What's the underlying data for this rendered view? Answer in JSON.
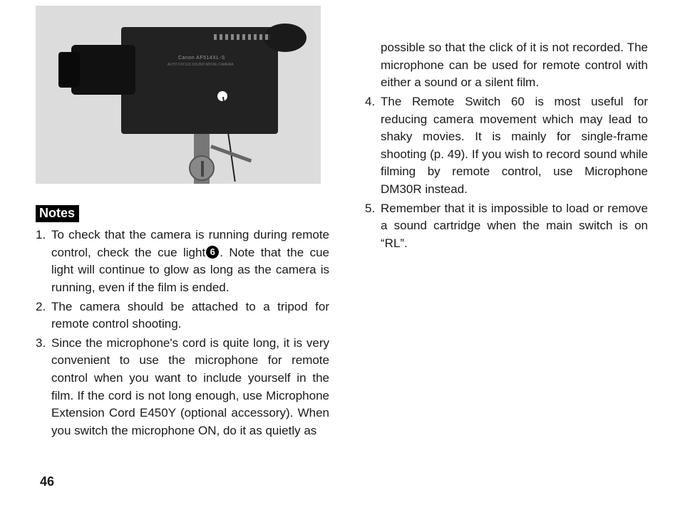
{
  "photo": {
    "brand_line": "Canon AF514XL-S",
    "sub_line": "AUTO FOCUS SOUND MOVIE CAMERA"
  },
  "notes_label": "Notes",
  "notes_left": [
    {
      "pre": "To check that the camera is running during remote control, check the cue light",
      "circled": "6",
      "post": ". Note that the cue light will continue to glow as long as the camera is running, even if the film is ended."
    },
    {
      "text": "The camera should be attached to a tripod for remote control shooting."
    },
    {
      "text": "Since the microphone's cord is quite long, it is very convenient to use the microphone for remote control when you want to include yourself in the film. If the cord is not long enough, use Microphone Extension Cord E450Y (optional accessory). When you switch the microphone ON, do it as quietly as"
    }
  ],
  "continuation_right": "possible so that the click of it is not recorded. The microphone can be used for remote control with either a sound or a silent film.",
  "notes_right": [
    {
      "text": "The Remote Switch 60 is most useful for reducing camera movement which may lead to shaky movies. It is mainly for single-frame shooting (p. 49). If you wish to record sound while filming by remote control, use Microphone DM30R instead."
    },
    {
      "text": "Remember that it is impossible to load or remove a sound cartridge when the main switch is on “RL”."
    }
  ],
  "page_number": "46"
}
